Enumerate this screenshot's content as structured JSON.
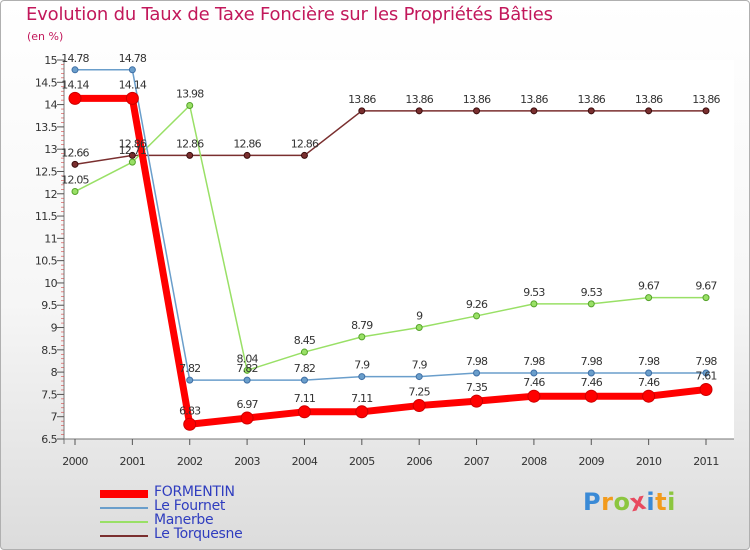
{
  "header": {
    "title": "Evolution du Taux de Taxe Foncière sur les Propriétés Bâties",
    "unit": "(en %)"
  },
  "logo": {
    "letters": [
      "P",
      "r",
      "o",
      "x",
      "i",
      "t",
      "i"
    ],
    "colors": [
      "#3a8ad6",
      "#f29b1d",
      "#8cc63f",
      "#e84a5f",
      "#3a8ad6",
      "#f29b1d",
      "#8cc63f"
    ]
  },
  "chart_data": {
    "type": "line",
    "title": "Evolution du Taux de Taxe Foncière sur les Propriétés Bâties",
    "ylabel": "(en %)",
    "xlabel": "",
    "x": [
      "2000",
      "2001",
      "2002",
      "2003",
      "2004",
      "2005",
      "2006",
      "2007",
      "2008",
      "2009",
      "2010",
      "2011"
    ],
    "ylim": [
      6.5,
      15
    ],
    "yticks": [
      6.5,
      7,
      7.5,
      8,
      8.5,
      9,
      9.5,
      10,
      10.5,
      11,
      11.5,
      12,
      12.5,
      13,
      13.5,
      14,
      14.5,
      15
    ],
    "grid": false,
    "legend_position": "bottom-left",
    "series": [
      {
        "name": "FORMENTIN",
        "color": "#ff0000",
        "values": [
          14.14,
          14.14,
          6.83,
          6.97,
          7.11,
          7.11,
          7.25,
          7.35,
          7.46,
          7.46,
          7.46,
          7.61
        ],
        "labels": [
          "14.14",
          "14.14",
          "6.83",
          "6.97",
          "7.11",
          "7.11",
          "7.25",
          "7.35",
          "7.46",
          "7.46",
          "7.46",
          "7.61"
        ]
      },
      {
        "name": "Le Fournet",
        "color": "#6a9ecb",
        "values": [
          14.78,
          14.78,
          7.82,
          7.82,
          7.82,
          7.9,
          7.9,
          7.98,
          7.98,
          7.98,
          7.98,
          7.98
        ],
        "labels": [
          "14.78",
          "14.78",
          "7.82",
          "7.82",
          "7.82",
          "7.9",
          "7.9",
          "7.98",
          "7.98",
          "7.98",
          "7.98",
          "7.98"
        ]
      },
      {
        "name": "Manerbe",
        "color": "#99e066",
        "values": [
          12.05,
          12.71,
          13.98,
          8.04,
          8.45,
          8.79,
          9,
          9.26,
          9.53,
          9.53,
          9.67,
          9.67
        ],
        "labels": [
          "12.05",
          "12.71",
          "13.98",
          "8.04",
          "8.45",
          "8.79",
          "9",
          "9.26",
          "9.53",
          "9.53",
          "9.67",
          "9.67"
        ]
      },
      {
        "name": "Le Torquesne",
        "color": "#7a2f2f",
        "values": [
          12.66,
          12.86,
          12.86,
          12.86,
          12.86,
          13.86,
          13.86,
          13.86,
          13.86,
          13.86,
          13.86,
          13.86
        ],
        "labels": [
          "12.66",
          "12.86",
          "12.86",
          "12.86",
          "12.86",
          "13.86",
          "13.86",
          "13.86",
          "13.86",
          "13.86",
          "13.86",
          "13.86"
        ]
      }
    ]
  }
}
